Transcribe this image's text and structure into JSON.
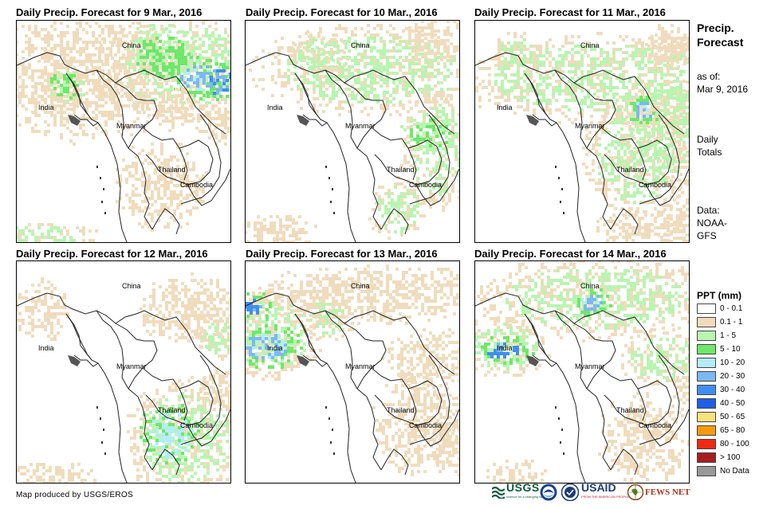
{
  "panels": [
    {
      "title": "Daily Precip. Forecast for 9 Mar., 2016"
    },
    {
      "title": "Daily Precip. Forecast for 10 Mar., 2016"
    },
    {
      "title": "Daily Precip. Forecast for 11 Mar., 2016"
    },
    {
      "title": "Daily Precip. Forecast for 12 Mar., 2016"
    },
    {
      "title": "Daily Precip. Forecast for 13 Mar., 2016"
    },
    {
      "title": "Daily Precip. Forecast for 14 Mar., 2016"
    }
  ],
  "map_labels": {
    "china": "China",
    "india": "India",
    "myanmar": "Myanmar",
    "thailand": "Thailand",
    "cambodia": "Cambodia"
  },
  "sidebar": {
    "title_line1": "Precip.",
    "title_line2": "Forecast",
    "asof_line1": "as of:",
    "asof_line2": "Mar 9, 2016",
    "totals_line1": "Daily",
    "totals_line2": "Totals",
    "data_line1": "Data:",
    "data_line2": "NOAA-",
    "data_line3": "GFS"
  },
  "legend": {
    "title": "PPT (mm)",
    "items": [
      {
        "label": "0 - 0.1",
        "color": "#ffffff"
      },
      {
        "label": "0.1 - 1",
        "color": "#f0dcbc"
      },
      {
        "label": "1 - 5",
        "color": "#b8f5b0"
      },
      {
        "label": "5 - 10",
        "color": "#6ee86a"
      },
      {
        "label": "10 - 20",
        "color": "#b4ecfa"
      },
      {
        "label": "20 - 30",
        "color": "#7cb8f4"
      },
      {
        "label": "30 - 40",
        "color": "#3f8ef0"
      },
      {
        "label": "40 - 50",
        "color": "#1f5ee6"
      },
      {
        "label": "50 - 65",
        "color": "#f8e27a"
      },
      {
        "label": "65 - 80",
        "color": "#f59a10"
      },
      {
        "label": "80 - 100",
        "color": "#ee2a10"
      },
      {
        "label": "> 100",
        "color": "#a81e1e"
      },
      {
        "label": "No Data",
        "color": "#999999"
      }
    ]
  },
  "footer": {
    "credit": "Map produced by USGS/EROS",
    "usgs": "USGS",
    "usgs_tagline": "science for a changing world",
    "usaid": "USAID",
    "usaid_tagline": "FROM THE AMERICAN PEOPLE",
    "fewsnet": "FEWS NET"
  }
}
